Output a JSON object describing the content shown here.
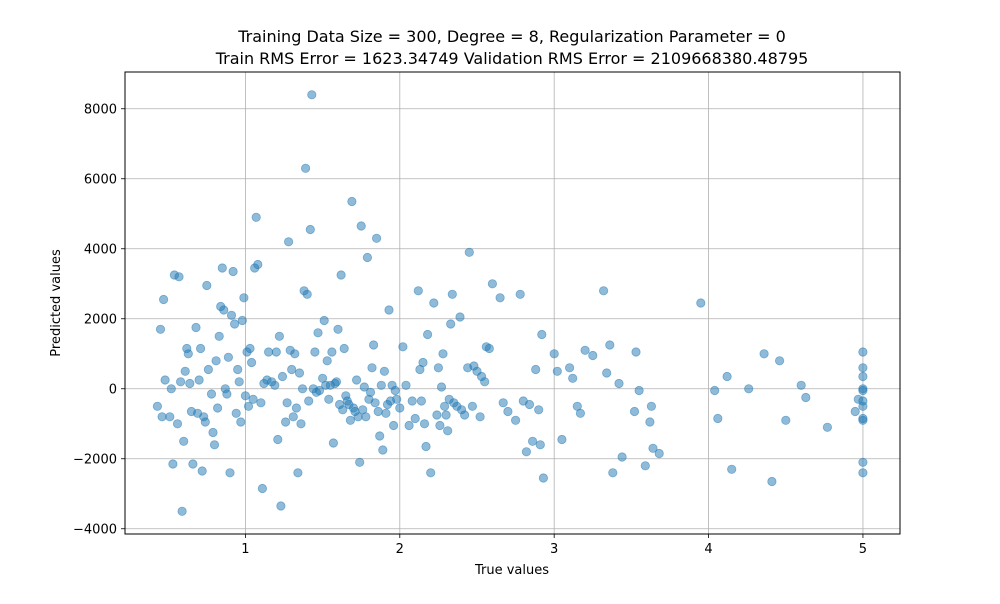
{
  "chart_data": {
    "type": "scatter",
    "title_line1": "Training Data Size = 300, Degree = 8, Regularization Parameter = 0",
    "title_line2": "Train RMS Error = 1623.34749 Validation RMS Error = 2109668380.48795",
    "xlabel": "True values",
    "ylabel": "Predicted values",
    "xlim": [
      0.22,
      5.24
    ],
    "ylim": [
      -4150,
      9050
    ],
    "grid": true,
    "marker_color": "#1f77b4",
    "marker_alpha": 0.5,
    "x_ticks": [
      1,
      2,
      3,
      4,
      5
    ],
    "x_tick_labels": [
      "1",
      "2",
      "3",
      "4",
      "5"
    ],
    "y_ticks": [
      -4000,
      -2000,
      0,
      2000,
      4000,
      6000,
      8000
    ],
    "y_tick_labels": [
      "−4000",
      "−2000",
      "0",
      "2000",
      "4000",
      "6000",
      "8000"
    ],
    "points": [
      [
        0.43,
        -500
      ],
      [
        0.45,
        1700
      ],
      [
        0.46,
        -800
      ],
      [
        0.47,
        2550
      ],
      [
        0.48,
        250
      ],
      [
        0.51,
        -800
      ],
      [
        0.52,
        0
      ],
      [
        0.53,
        -2150
      ],
      [
        0.54,
        3250
      ],
      [
        0.56,
        -1000
      ],
      [
        0.57,
        3200
      ],
      [
        0.58,
        200
      ],
      [
        0.59,
        -3500
      ],
      [
        0.6,
        -1500
      ],
      [
        0.61,
        500
      ],
      [
        0.62,
        1150
      ],
      [
        0.63,
        1000
      ],
      [
        0.64,
        150
      ],
      [
        0.65,
        -650
      ],
      [
        0.66,
        -2150
      ],
      [
        0.68,
        1750
      ],
      [
        0.69,
        -700
      ],
      [
        0.7,
        250
      ],
      [
        0.71,
        1150
      ],
      [
        0.72,
        -2350
      ],
      [
        0.73,
        -800
      ],
      [
        0.74,
        -950
      ],
      [
        0.75,
        2950
      ],
      [
        0.76,
        550
      ],
      [
        0.78,
        -150
      ],
      [
        0.79,
        -1250
      ],
      [
        0.8,
        -1600
      ],
      [
        0.81,
        800
      ],
      [
        0.82,
        -550
      ],
      [
        0.83,
        1500
      ],
      [
        0.84,
        2350
      ],
      [
        0.85,
        3450
      ],
      [
        0.86,
        2250
      ],
      [
        0.87,
        0
      ],
      [
        0.88,
        -150
      ],
      [
        0.89,
        900
      ],
      [
        0.9,
        -2400
      ],
      [
        0.91,
        2100
      ],
      [
        0.92,
        3350
      ],
      [
        0.93,
        1850
      ],
      [
        0.94,
        -700
      ],
      [
        0.95,
        550
      ],
      [
        0.96,
        200
      ],
      [
        0.97,
        -950
      ],
      [
        0.98,
        1950
      ],
      [
        0.99,
        2600
      ],
      [
        1.0,
        -200
      ],
      [
        1.01,
        1050
      ],
      [
        1.02,
        -500
      ],
      [
        1.03,
        1150
      ],
      [
        1.04,
        750
      ],
      [
        1.05,
        -300
      ],
      [
        1.06,
        3450
      ],
      [
        1.07,
        4900
      ],
      [
        1.08,
        3550
      ],
      [
        1.1,
        -400
      ],
      [
        1.11,
        -2850
      ],
      [
        1.12,
        150
      ],
      [
        1.14,
        250
      ],
      [
        1.15,
        1050
      ],
      [
        1.17,
        200
      ],
      [
        1.19,
        100
      ],
      [
        1.2,
        1050
      ],
      [
        1.21,
        -1450
      ],
      [
        1.22,
        1500
      ],
      [
        1.23,
        -3350
      ],
      [
        1.24,
        350
      ],
      [
        1.26,
        -950
      ],
      [
        1.27,
        -400
      ],
      [
        1.28,
        4200
      ],
      [
        1.29,
        1100
      ],
      [
        1.3,
        550
      ],
      [
        1.31,
        -800
      ],
      [
        1.32,
        1000
      ],
      [
        1.33,
        -550
      ],
      [
        1.34,
        -2400
      ],
      [
        1.35,
        450
      ],
      [
        1.36,
        -1000
      ],
      [
        1.37,
        0
      ],
      [
        1.38,
        2800
      ],
      [
        1.39,
        6300
      ],
      [
        1.4,
        2700
      ],
      [
        1.41,
        -350
      ],
      [
        1.42,
        4550
      ],
      [
        1.43,
        8400
      ],
      [
        1.44,
        0
      ],
      [
        1.45,
        1050
      ],
      [
        1.46,
        -100
      ],
      [
        1.47,
        1600
      ],
      [
        1.48,
        -50
      ],
      [
        1.5,
        300
      ],
      [
        1.51,
        1950
      ],
      [
        1.52,
        100
      ],
      [
        1.53,
        800
      ],
      [
        1.54,
        -300
      ],
      [
        1.55,
        100
      ],
      [
        1.56,
        1050
      ],
      [
        1.57,
        -1550
      ],
      [
        1.58,
        150
      ],
      [
        1.59,
        200
      ],
      [
        1.6,
        1700
      ],
      [
        1.61,
        -450
      ],
      [
        1.62,
        3250
      ],
      [
        1.63,
        -600
      ],
      [
        1.64,
        1150
      ],
      [
        1.65,
        -200
      ],
      [
        1.66,
        -350
      ],
      [
        1.67,
        -450
      ],
      [
        1.68,
        -900
      ],
      [
        1.69,
        5350
      ],
      [
        1.7,
        -550
      ],
      [
        1.71,
        -650
      ],
      [
        1.72,
        250
      ],
      [
        1.73,
        -800
      ],
      [
        1.74,
        -2100
      ],
      [
        1.75,
        4650
      ],
      [
        1.76,
        -600
      ],
      [
        1.77,
        50
      ],
      [
        1.78,
        -800
      ],
      [
        1.79,
        3750
      ],
      [
        1.8,
        -300
      ],
      [
        1.81,
        -100
      ],
      [
        1.82,
        600
      ],
      [
        1.83,
        1250
      ],
      [
        1.84,
        -400
      ],
      [
        1.85,
        4300
      ],
      [
        1.86,
        -650
      ],
      [
        1.87,
        -1350
      ],
      [
        1.88,
        100
      ],
      [
        1.89,
        -1750
      ],
      [
        1.9,
        500
      ],
      [
        1.91,
        -700
      ],
      [
        1.92,
        -450
      ],
      [
        1.93,
        2250
      ],
      [
        1.94,
        -350
      ],
      [
        1.95,
        100
      ],
      [
        1.96,
        -1050
      ],
      [
        1.97,
        -50
      ],
      [
        1.98,
        -300
      ],
      [
        2.0,
        -550
      ],
      [
        2.02,
        1200
      ],
      [
        2.04,
        100
      ],
      [
        2.06,
        -1050
      ],
      [
        2.08,
        -350
      ],
      [
        2.1,
        -850
      ],
      [
        2.12,
        2800
      ],
      [
        2.13,
        550
      ],
      [
        2.14,
        -350
      ],
      [
        2.15,
        750
      ],
      [
        2.16,
        -1000
      ],
      [
        2.17,
        -1650
      ],
      [
        2.18,
        1550
      ],
      [
        2.2,
        -2400
      ],
      [
        2.22,
        2450
      ],
      [
        2.24,
        -750
      ],
      [
        2.25,
        600
      ],
      [
        2.26,
        -1050
      ],
      [
        2.27,
        50
      ],
      [
        2.28,
        1000
      ],
      [
        2.29,
        -500
      ],
      [
        2.3,
        -750
      ],
      [
        2.31,
        -1200
      ],
      [
        2.32,
        -300
      ],
      [
        2.33,
        1850
      ],
      [
        2.34,
        2700
      ],
      [
        2.35,
        -400
      ],
      [
        2.37,
        -500
      ],
      [
        2.39,
        2050
      ],
      [
        2.4,
        -600
      ],
      [
        2.42,
        -750
      ],
      [
        2.44,
        600
      ],
      [
        2.45,
        3900
      ],
      [
        2.47,
        -500
      ],
      [
        2.48,
        650
      ],
      [
        2.5,
        500
      ],
      [
        2.52,
        -800
      ],
      [
        2.53,
        350
      ],
      [
        2.55,
        200
      ],
      [
        2.56,
        1200
      ],
      [
        2.58,
        1150
      ],
      [
        2.6,
        3000
      ],
      [
        2.65,
        2600
      ],
      [
        2.67,
        -400
      ],
      [
        2.7,
        -650
      ],
      [
        2.75,
        -900
      ],
      [
        2.78,
        2700
      ],
      [
        2.8,
        -350
      ],
      [
        2.82,
        -1800
      ],
      [
        2.84,
        -450
      ],
      [
        2.86,
        -1500
      ],
      [
        2.88,
        550
      ],
      [
        2.9,
        -600
      ],
      [
        2.91,
        -1600
      ],
      [
        2.92,
        1550
      ],
      [
        2.93,
        -2550
      ],
      [
        3.0,
        1000
      ],
      [
        3.02,
        500
      ],
      [
        3.05,
        -1450
      ],
      [
        3.1,
        600
      ],
      [
        3.12,
        300
      ],
      [
        3.15,
        -500
      ],
      [
        3.17,
        -700
      ],
      [
        3.2,
        1100
      ],
      [
        3.25,
        950
      ],
      [
        3.32,
        2800
      ],
      [
        3.34,
        450
      ],
      [
        3.36,
        1250
      ],
      [
        3.38,
        -2400
      ],
      [
        3.42,
        150
      ],
      [
        3.44,
        -1950
      ],
      [
        3.52,
        -650
      ],
      [
        3.55,
        -50
      ],
      [
        3.53,
        1050
      ],
      [
        3.59,
        -2200
      ],
      [
        3.63,
        -500
      ],
      [
        3.64,
        -1700
      ],
      [
        3.62,
        -950
      ],
      [
        3.68,
        -1850
      ],
      [
        3.95,
        2450
      ],
      [
        4.04,
        -50
      ],
      [
        4.06,
        -850
      ],
      [
        4.12,
        350
      ],
      [
        4.15,
        -2300
      ],
      [
        4.26,
        0
      ],
      [
        4.36,
        1000
      ],
      [
        4.41,
        -2650
      ],
      [
        4.46,
        800
      ],
      [
        4.5,
        -900
      ],
      [
        4.6,
        100
      ],
      [
        4.63,
        -250
      ],
      [
        4.77,
        -1100
      ],
      [
        4.95,
        -650
      ],
      [
        4.97,
        -300
      ],
      [
        5.0,
        1050
      ],
      [
        5.0,
        600
      ],
      [
        5.0,
        350
      ],
      [
        5.0,
        0
      ],
      [
        5.0,
        -50
      ],
      [
        5.0,
        -350
      ],
      [
        5.0,
        -500
      ],
      [
        5.0,
        -900
      ],
      [
        5.0,
        -850
      ],
      [
        5.0,
        -2100
      ],
      [
        5.0,
        -2400
      ]
    ]
  }
}
